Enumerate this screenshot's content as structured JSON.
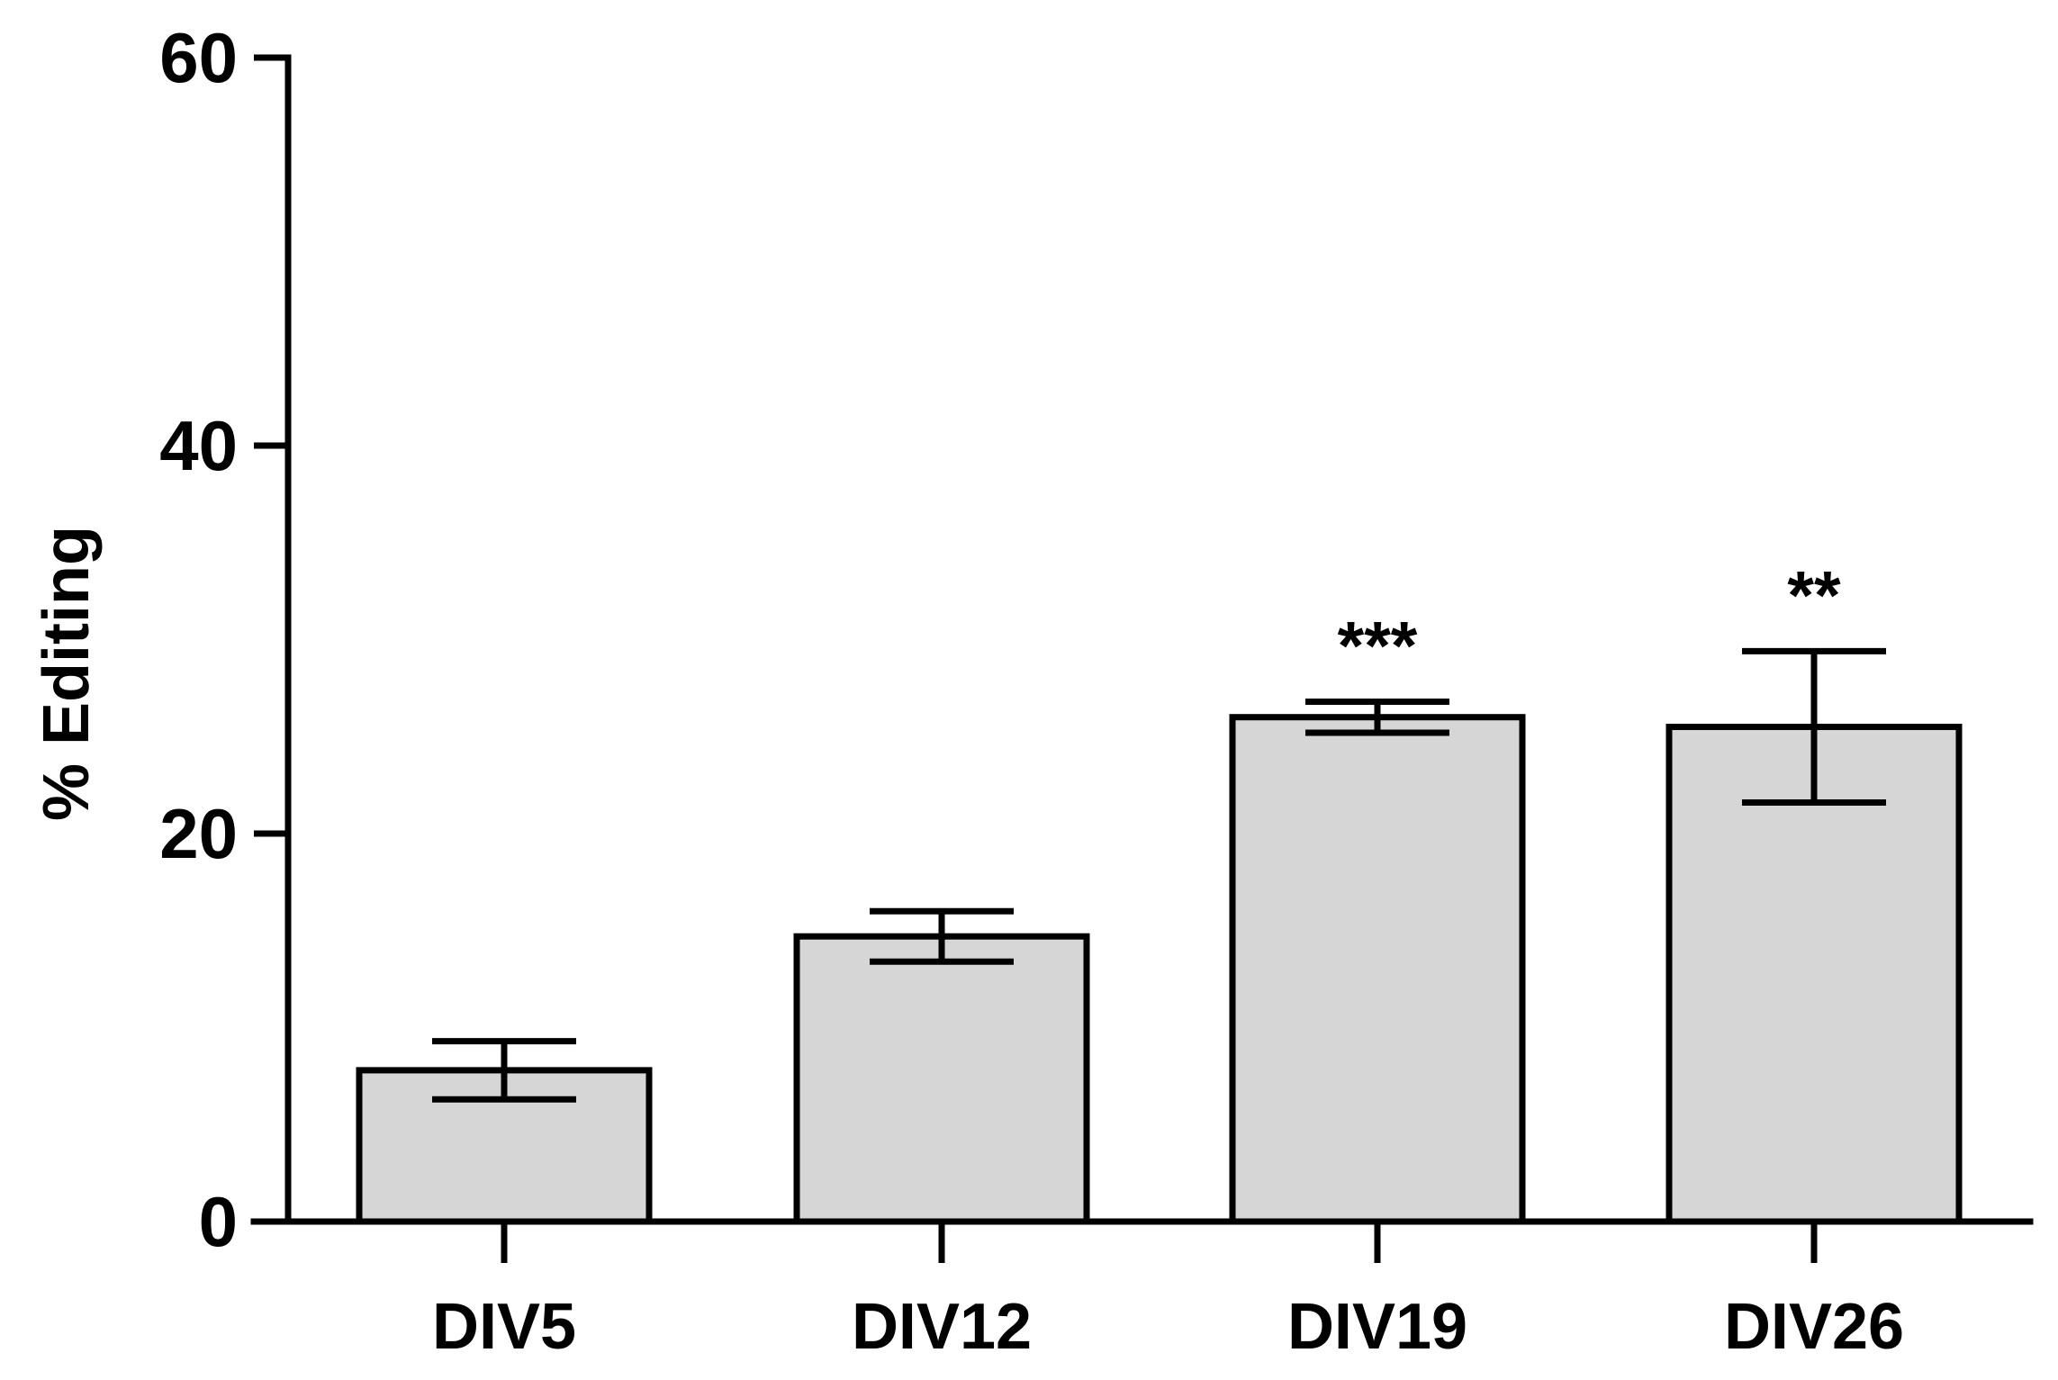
{
  "chart_data": {
    "type": "bar",
    "title": "",
    "xlabel": "",
    "ylabel": "% Editing",
    "categories": [
      "DIV5",
      "DIV12",
      "DIV19",
      "DIV26"
    ],
    "values": [
      7.8,
      14.7,
      26.0,
      25.5
    ],
    "errors": [
      1.5,
      1.3,
      0.8,
      3.9
    ],
    "annotations": [
      "",
      "",
      "***",
      "**"
    ],
    "ylim": [
      0,
      60
    ],
    "yticks": [
      0,
      20,
      40,
      60
    ],
    "ytick_labels": [
      "0",
      "20",
      "40",
      "60"
    ],
    "grid": false,
    "colors": {
      "bar_fill": "#d6d6d6",
      "bar_stroke": "#000000",
      "axis": "#000000"
    }
  }
}
